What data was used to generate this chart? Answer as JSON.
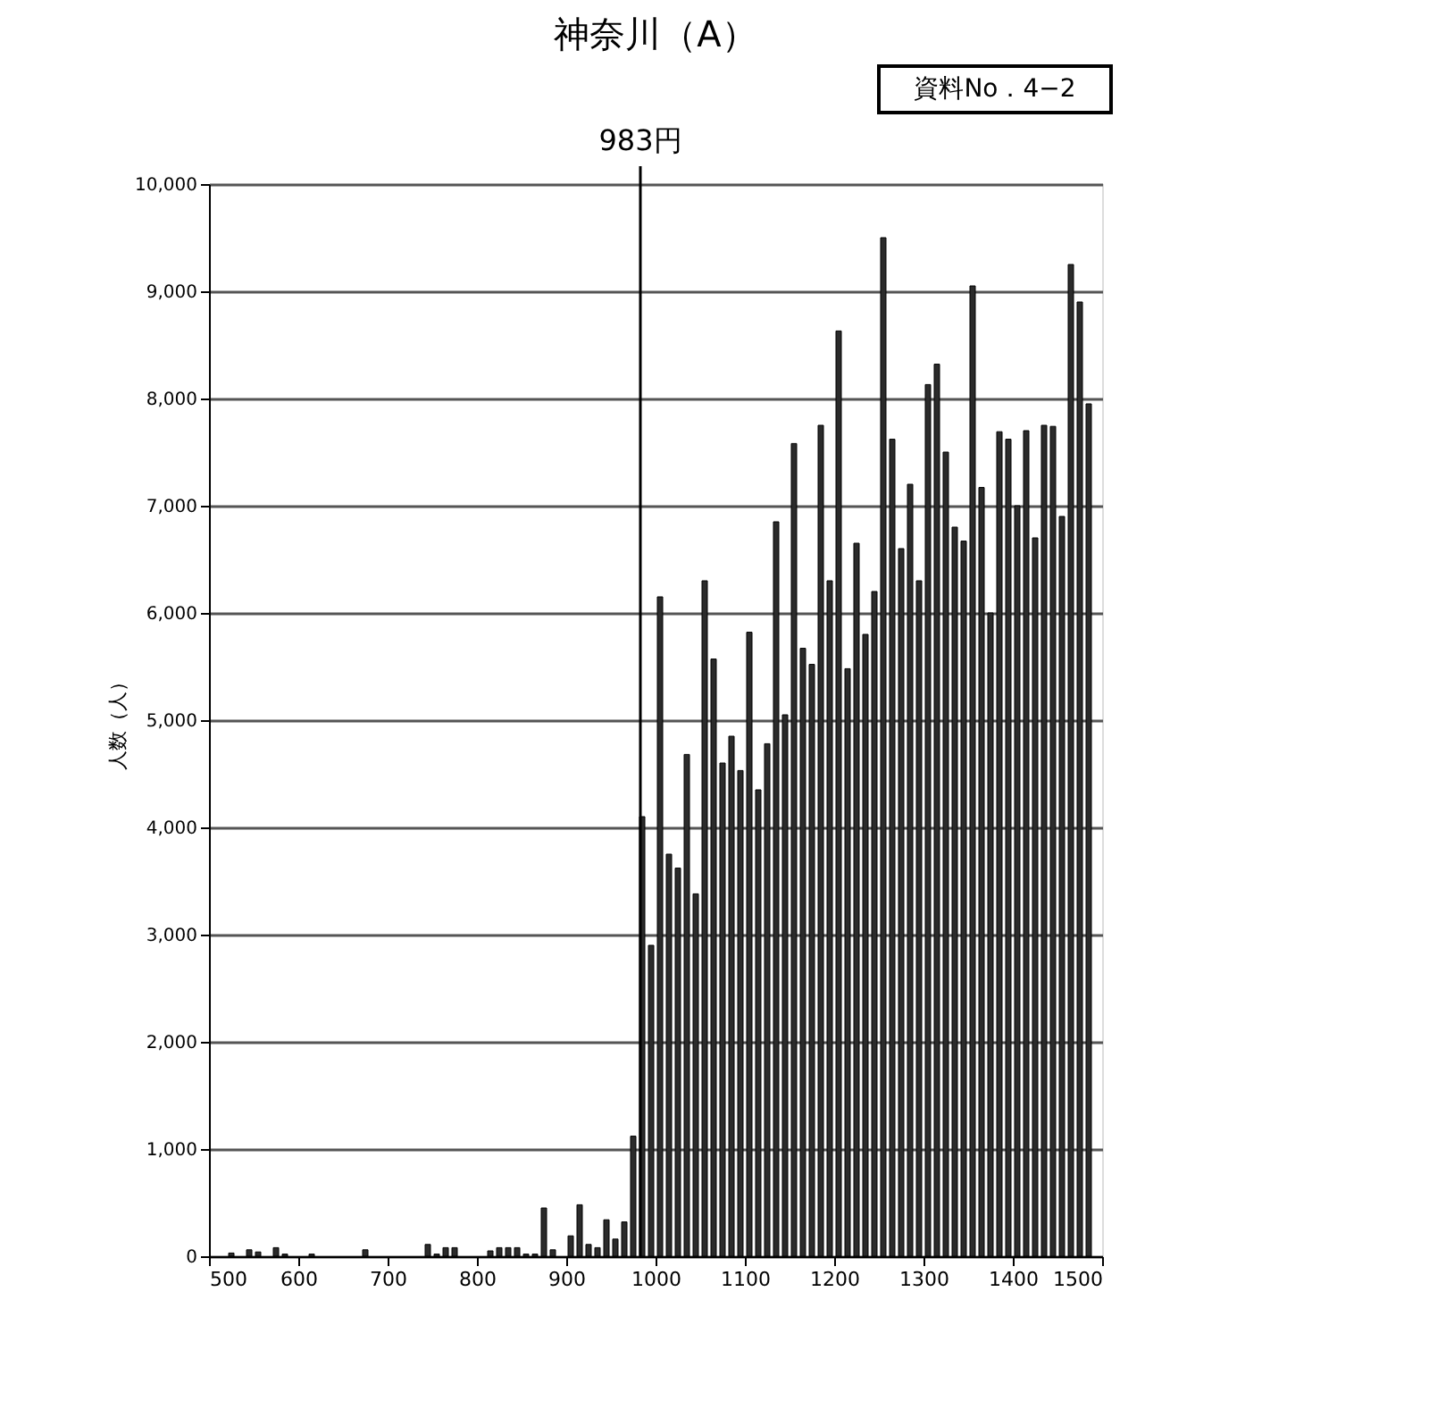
{
  "chart_data": {
    "type": "bar",
    "title": "神奈川（A）",
    "ylabel": "人数（人）",
    "annotations": [
      "資料No．4−2"
    ],
    "x": [
      525,
      545,
      555,
      575,
      585,
      615,
      675,
      735,
      745,
      755,
      765,
      775,
      815,
      825,
      835,
      845,
      855,
      865,
      875,
      885,
      905,
      915,
      925,
      935,
      945,
      955,
      965,
      975,
      985,
      995,
      1005,
      1015,
      1025,
      1035,
      1045,
      1055,
      1065,
      1075,
      1085,
      1095,
      1105,
      1115,
      1125,
      1135,
      1145,
      1155,
      1165,
      1175,
      1185,
      1195,
      1205,
      1215,
      1225,
      1235,
      1245,
      1255,
      1265,
      1275,
      1285,
      1295,
      1305,
      1315,
      1325,
      1335,
      1345,
      1355,
      1365,
      1375,
      1385,
      1395,
      1405,
      1415,
      1425,
      1435,
      1445,
      1455,
      1465,
      1475,
      1485
    ],
    "series": [
      {
        "color": "#2b2b2b",
        "values": [
          30,
          60,
          40,
          80,
          20,
          20,
          60,
          null,
          110,
          20,
          80,
          80,
          50,
          80,
          80,
          80,
          20,
          20,
          450,
          60,
          190,
          480,
          110,
          80,
          340,
          160,
          320,
          1120,
          4100,
          2900,
          6150,
          3750,
          3620,
          4680,
          3380,
          6300,
          5570,
          4600,
          4850,
          4530,
          5820,
          4350,
          4780,
          6850,
          5050,
          7580,
          5670,
          5520,
          7750,
          6300,
          8630,
          5480,
          6650,
          5800,
          6200,
          9500,
          7620,
          6600,
          7200,
          6300,
          8130,
          8320,
          7500,
          6800,
          6670,
          9050,
          7170,
          6000,
          7690,
          7620,
          7000,
          7700,
          6700,
          7750,
          7740,
          6900,
          9250,
          8900,
          7950
        ]
      }
    ],
    "xlim": [
      500,
      1500
    ],
    "xticks": [
      500,
      600,
      700,
      800,
      900,
      1000,
      1100,
      1200,
      1300,
      1400,
      1500
    ],
    "ylim": [
      0,
      10000
    ],
    "yticks": [
      0,
      {
        "value": 1000,
        "label": "1,000"
      },
      {
        "value": 2000,
        "label": "2,000"
      },
      {
        "value": 3000,
        "label": "3,000"
      },
      {
        "value": 4000,
        "label": "4,000"
      },
      {
        "value": 5000,
        "label": "5,000"
      },
      {
        "value": 6000,
        "label": "6,000"
      },
      {
        "value": 7000,
        "label": "7,000"
      },
      {
        "value": 8000,
        "label": "8,000"
      },
      {
        "value": 9000,
        "label": "9,000"
      },
      {
        "value": 10000,
        "label": "10,000"
      }
    ],
    "grid": "y",
    "ref_lines": [
      {
        "axis": "x",
        "value": 983,
        "label": "983円",
        "color": "#000000"
      }
    ]
  }
}
